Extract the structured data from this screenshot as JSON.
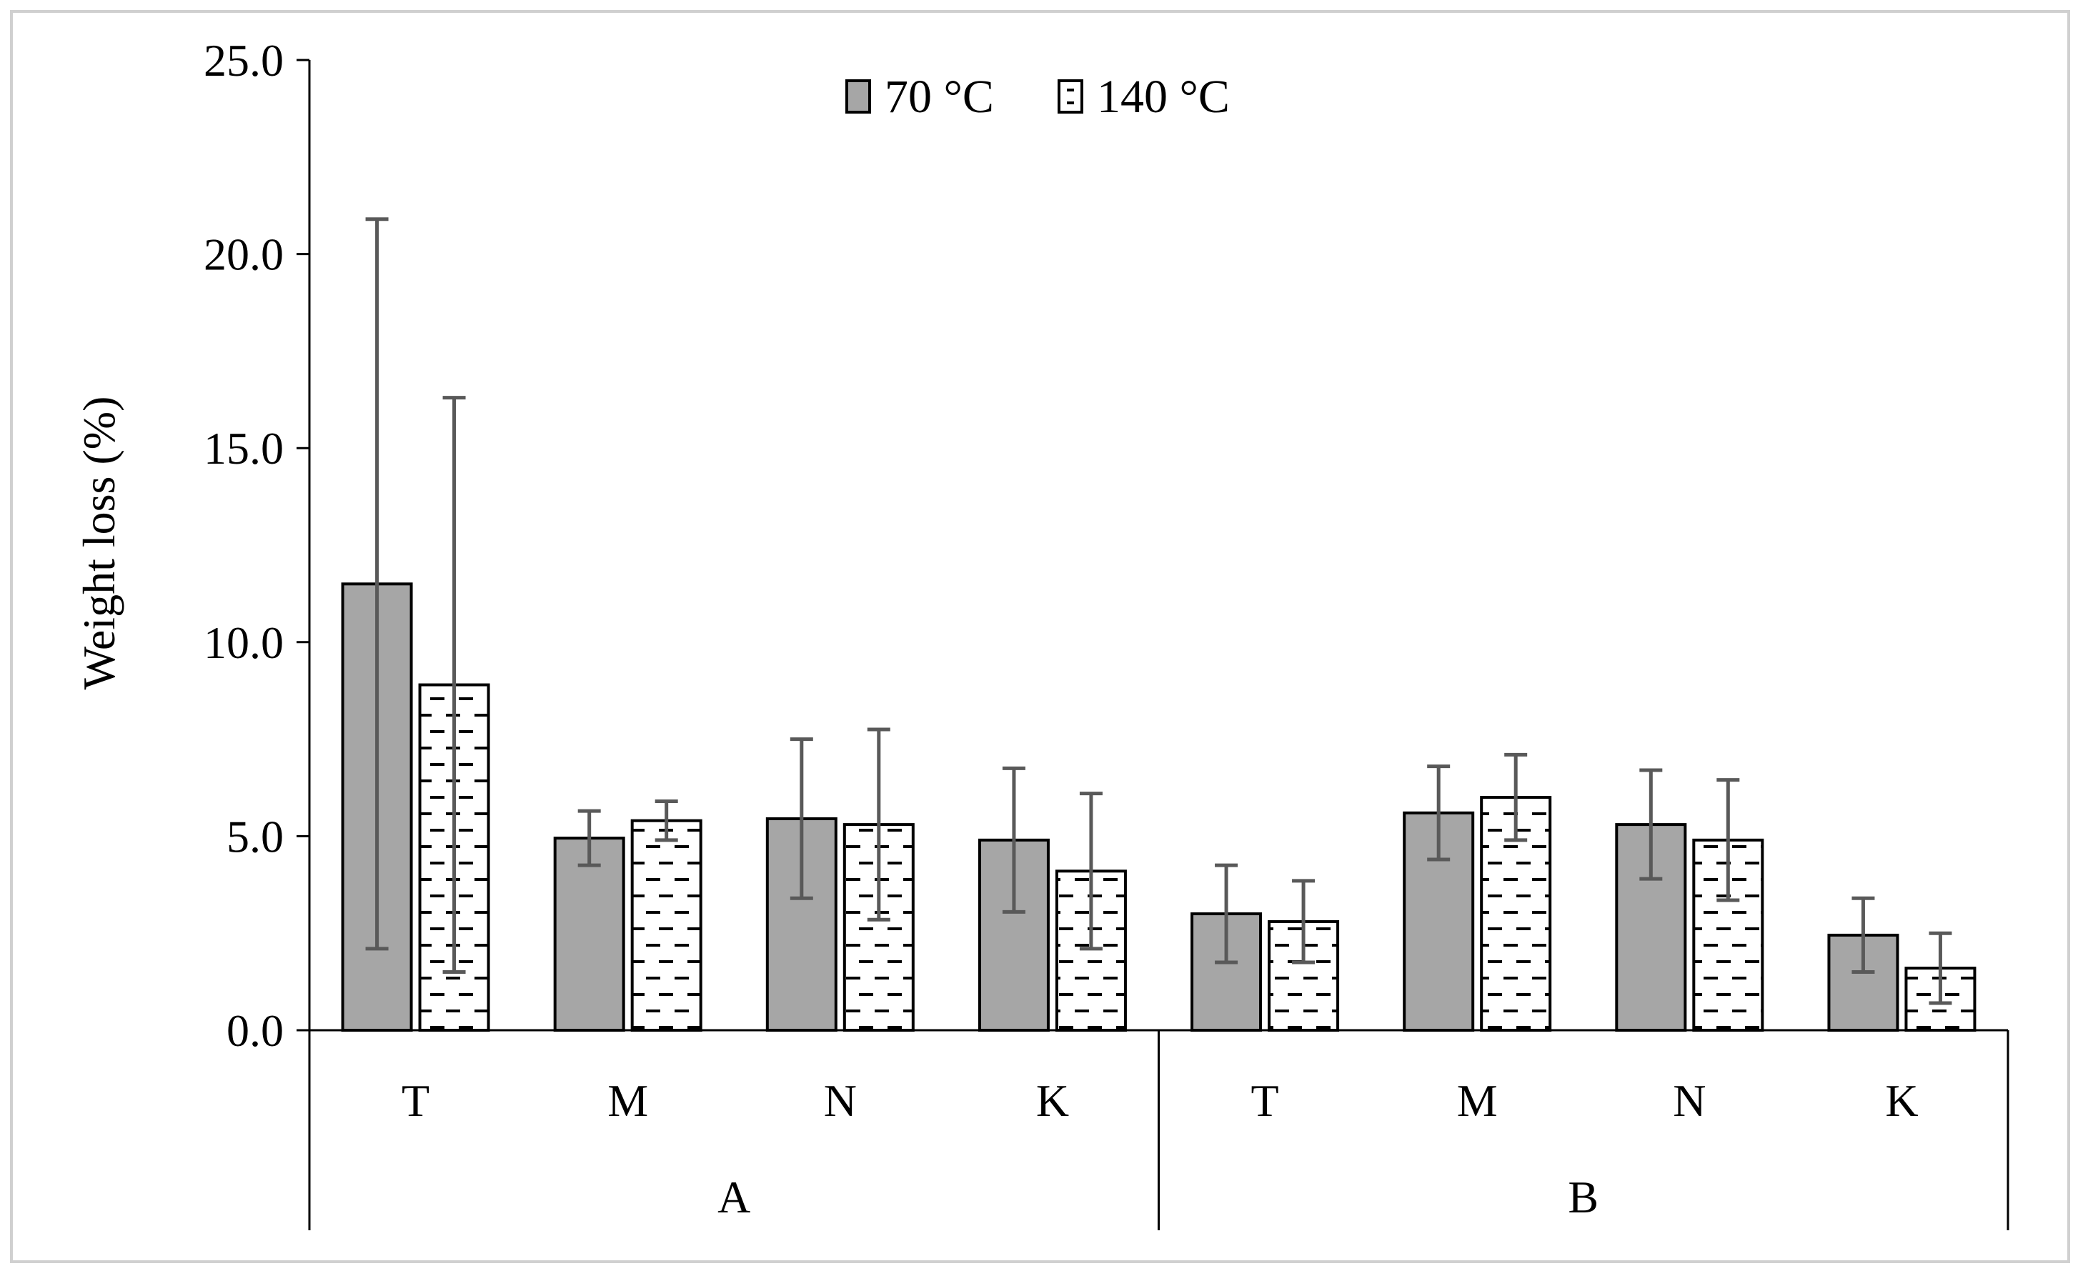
{
  "chart_data": {
    "type": "bar",
    "title": "",
    "ylabel": "Weight loss (%)",
    "xlabel": "",
    "ylim": [
      0,
      25
    ],
    "yticks": [
      "0.0",
      "5.0",
      "10.0",
      "15.0",
      "20.0",
      "25.0"
    ],
    "ytick_values": [
      0,
      5,
      10,
      15,
      20,
      25
    ],
    "groups": [
      "A",
      "B"
    ],
    "categories": [
      "T",
      "M",
      "N",
      "K",
      "T",
      "M",
      "N",
      "K"
    ],
    "legend_position": "top-center",
    "series": [
      {
        "name": "70 °C",
        "color": "#a6a6a6",
        "pattern": "solid",
        "values": [
          11.5,
          4.95,
          5.45,
          4.9,
          3.0,
          5.6,
          5.3,
          2.45
        ],
        "errors": [
          9.4,
          0.7,
          2.05,
          1.85,
          1.25,
          1.2,
          1.4,
          0.95
        ]
      },
      {
        "name": "140 °C",
        "color": "#ffffff",
        "pattern": "dashes",
        "values": [
          8.9,
          5.4,
          5.3,
          4.1,
          2.8,
          6.0,
          4.9,
          1.6
        ],
        "errors": [
          7.4,
          0.5,
          2.45,
          2.0,
          1.05,
          1.1,
          1.55,
          0.9
        ]
      }
    ]
  }
}
